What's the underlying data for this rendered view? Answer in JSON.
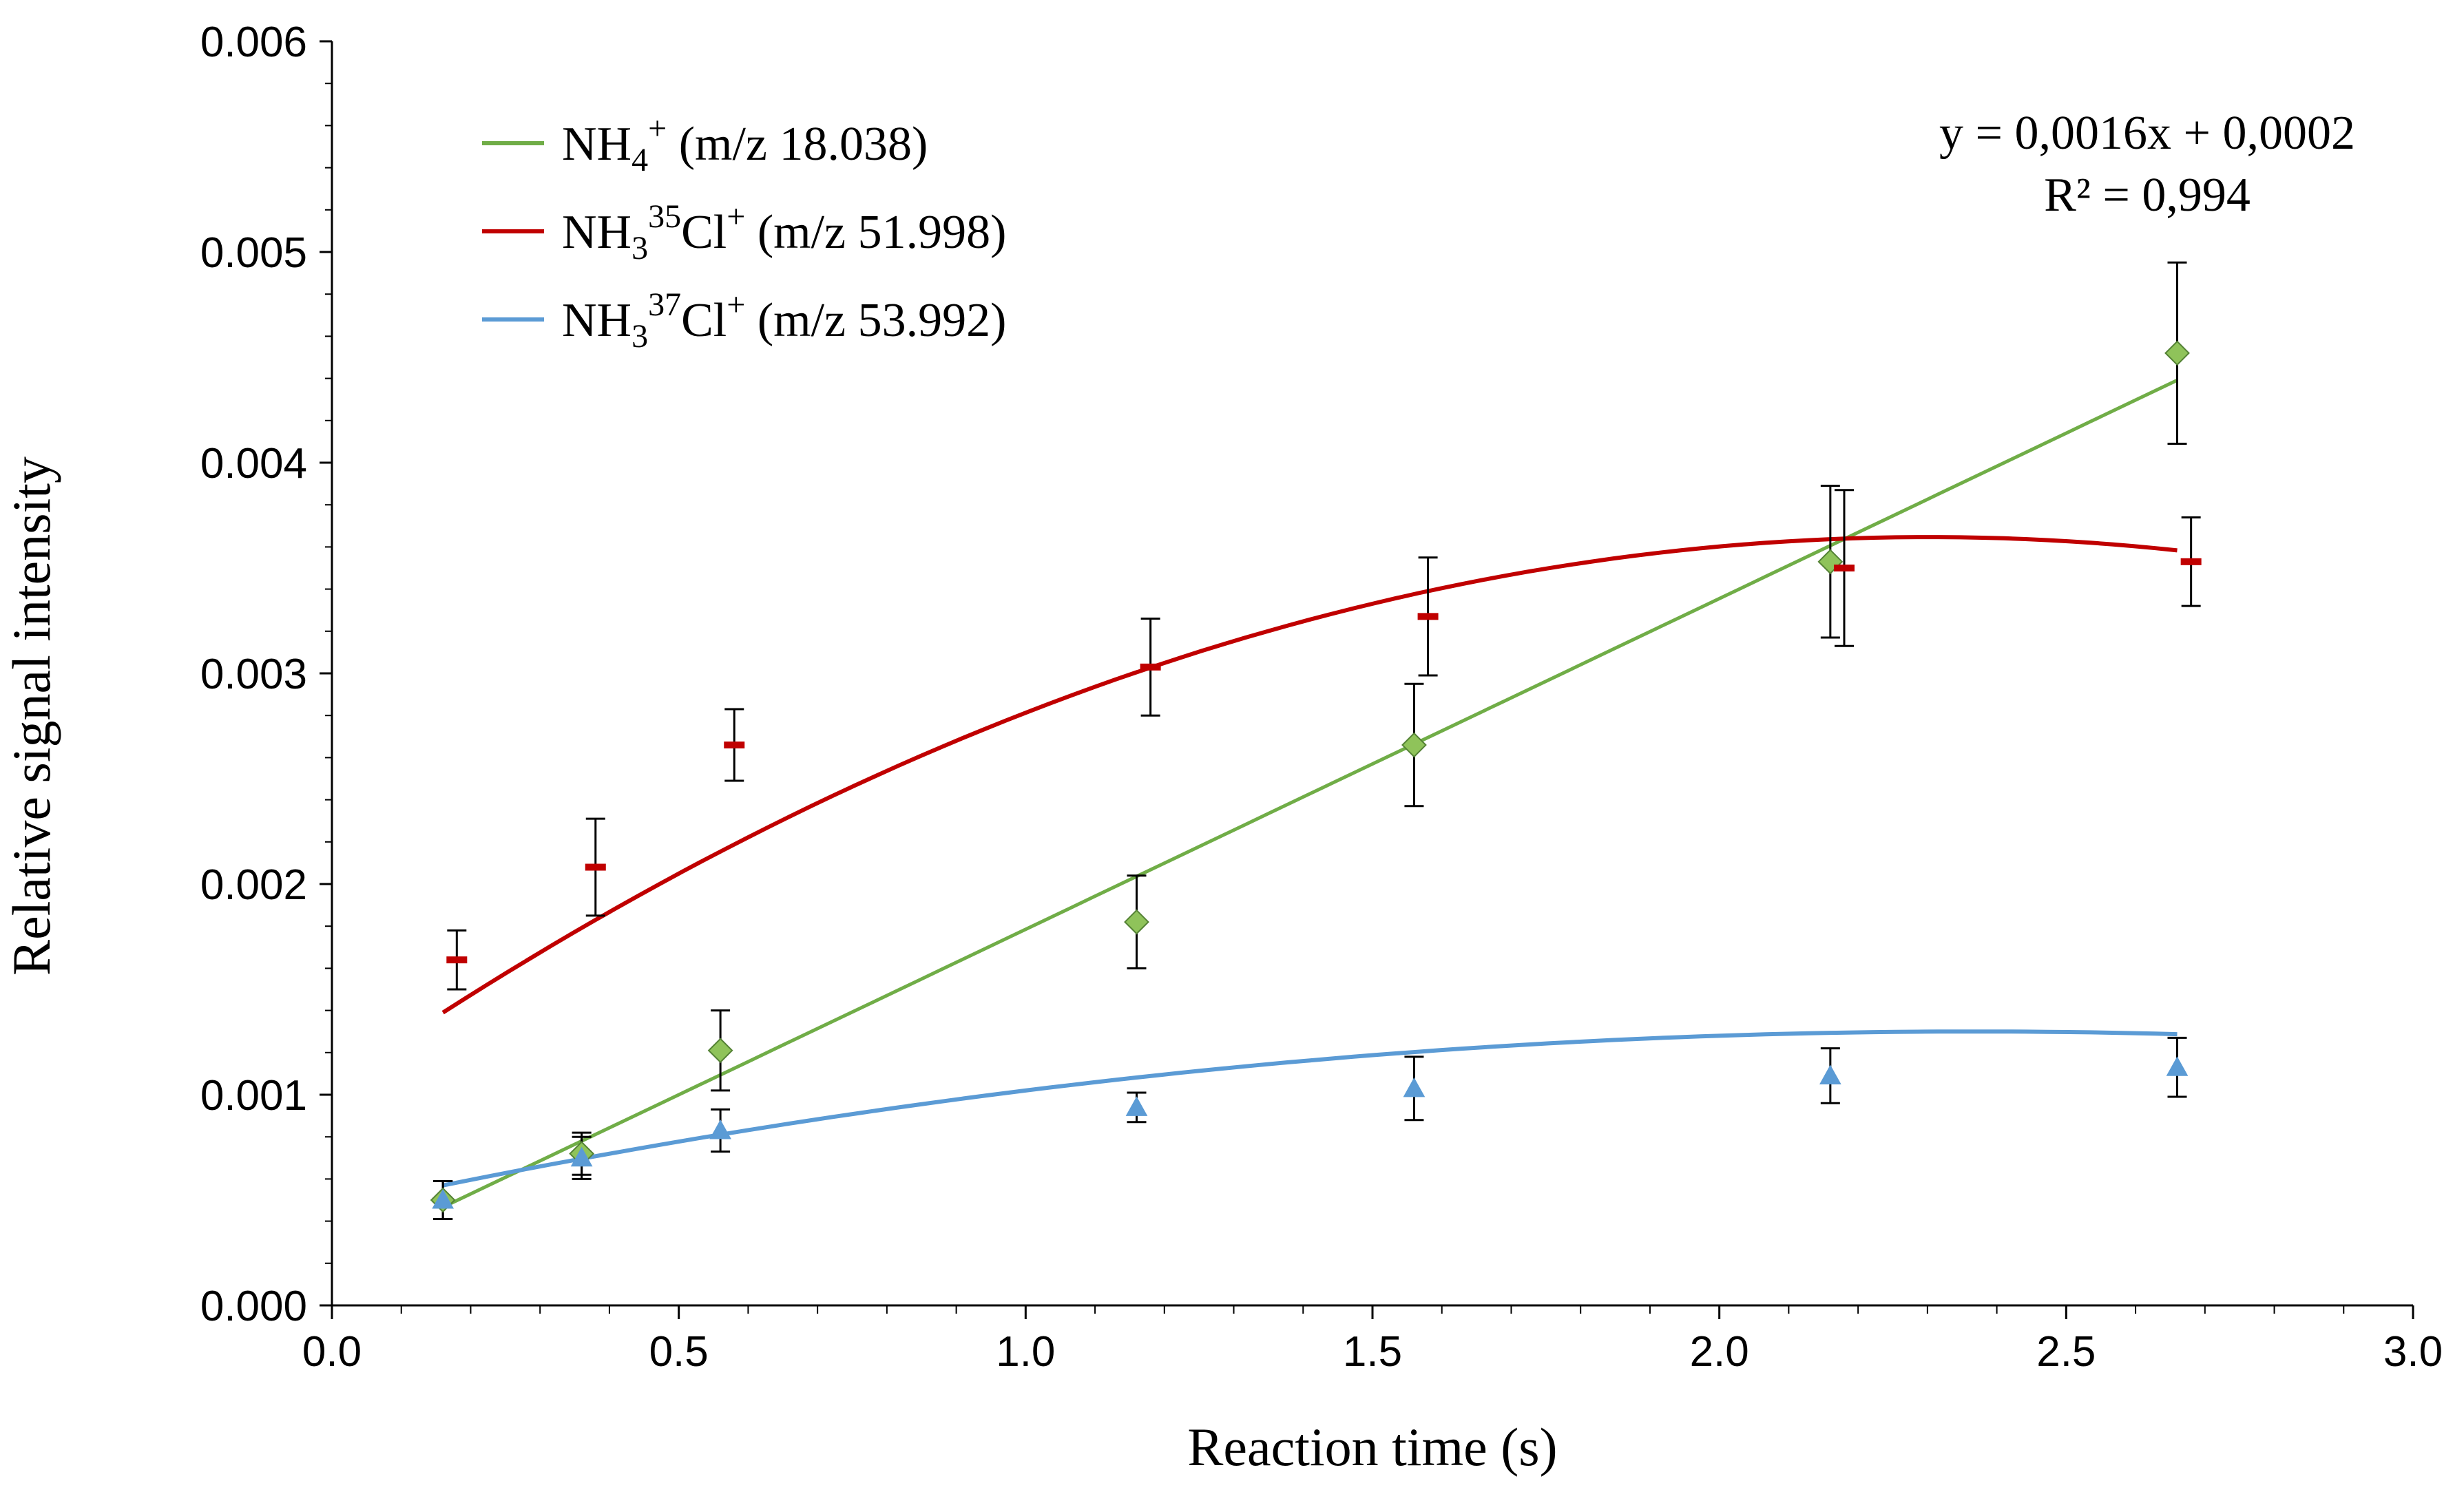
{
  "chart_data": {
    "type": "scatter",
    "xlabel": "Reaction time (s)",
    "ylabel": "Relative signal intensity",
    "xlim": [
      0.0,
      3.0
    ],
    "ylim": [
      0.0,
      0.006
    ],
    "x_ticks": [
      "0.0",
      "0.5",
      "1.0",
      "1.5",
      "2.0",
      "2.5",
      "3.0"
    ],
    "y_ticks": [
      "0.000",
      "0.001",
      "0.002",
      "0.003",
      "0.004",
      "0.005",
      "0.006"
    ],
    "legend_position": "top-left",
    "grid": false,
    "annotation": {
      "equation": "y = 0,0016x + 0,0002",
      "r2_label": "R² = 0,994"
    },
    "series": [
      {
        "name": "NH4+ (m/z 18.038)",
        "legend": {
          "base": "NH",
          "sub": "4",
          "mid": "",
          "sup": "+",
          "tail": " (m/z 18.038)"
        },
        "color": "#70ad47",
        "fill": "#8fc35a",
        "marker": "diamond",
        "x": [
          0.16,
          0.36,
          0.56,
          1.16,
          1.56,
          2.16,
          2.66
        ],
        "y": [
          0.0005,
          0.00072,
          0.00121,
          0.00182,
          0.00266,
          0.00353,
          0.00452
        ],
        "err": [
          9e-05,
          0.0001,
          0.00019,
          0.00022,
          0.00029,
          0.00036,
          0.00043
        ],
        "fit": {
          "kind": "linear",
          "slope": 0.00157,
          "intercept": 0.000215,
          "x_range": [
            0.16,
            2.66
          ]
        }
      },
      {
        "name": "NH3 35Cl+ (m/z 51.998)",
        "legend": {
          "base": "NH",
          "sub": "3",
          "mid": "35",
          "sup": "+",
          "tail": " (m/z 51.998)",
          "el": "Cl"
        },
        "color": "#c00000",
        "fill": "#c00000",
        "marker": "dash",
        "x": [
          0.18,
          0.38,
          0.58,
          1.18,
          1.58,
          2.18,
          2.68
        ],
        "y": [
          0.00164,
          0.00208,
          0.00266,
          0.00303,
          0.00327,
          0.0035,
          0.00353
        ],
        "err": [
          0.00014,
          0.00023,
          0.00017,
          0.00023,
          0.00028,
          0.00037,
          0.00021
        ],
        "fit": {
          "kind": "poly2",
          "a": -0.000492,
          "b": 0.002265,
          "c": 0.00104,
          "x_range": [
            0.16,
            2.66
          ]
        }
      },
      {
        "name": "NH3 37Cl+ (m/z 53.992)",
        "legend": {
          "base": "NH",
          "sub": "3",
          "mid": "37",
          "sup": "+",
          "tail": " (m/z 53.992)",
          "el": "Cl"
        },
        "color": "#5b9bd5",
        "fill": "#5b9bd5",
        "marker": "triangle",
        "x": [
          0.16,
          0.36,
          0.56,
          1.16,
          1.56,
          2.16,
          2.66
        ],
        "y": [
          0.0005,
          0.0007,
          0.00083,
          0.00094,
          0.00103,
          0.00109,
          0.00113
        ],
        "err": [
          9e-05,
          0.0001,
          0.0001,
          7e-05,
          0.00015,
          0.00013,
          0.00014
        ],
        "fit": {
          "kind": "poly2",
          "a": -0.00015,
          "b": 0.00071,
          "c": 0.00046,
          "x_range": [
            0.16,
            2.66
          ]
        }
      }
    ]
  }
}
